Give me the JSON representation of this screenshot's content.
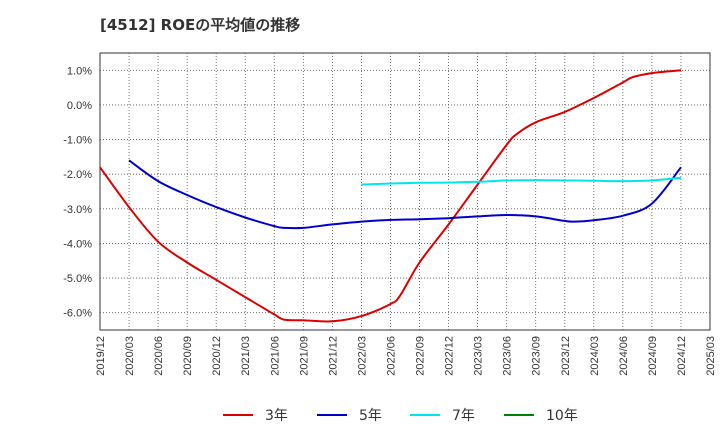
{
  "title": "[4512]  ROEの平均値の推移",
  "chart_data": {
    "type": "line",
    "title": "[4512]  ROEの平均値の推移",
    "xlabel": "",
    "ylabel": "",
    "ylim": [
      -6.5,
      1.5
    ],
    "yticks": [
      1.0,
      0.0,
      -1.0,
      -2.0,
      -3.0,
      -4.0,
      -5.0,
      -6.0
    ],
    "ytick_labels": [
      "1.0%",
      "0.0%",
      "-1.0%",
      "-2.0%",
      "-3.0%",
      "-4.0%",
      "-5.0%",
      "-6.0%"
    ],
    "xlim": [
      "2019/12",
      "2025/03"
    ],
    "categories": [
      "2019/12",
      "2020/03",
      "2020/06",
      "2020/09",
      "2020/12",
      "2021/03",
      "2021/06",
      "2021/09",
      "2021/12",
      "2022/03",
      "2022/06",
      "2022/09",
      "2022/12",
      "2023/03",
      "2023/06",
      "2023/09",
      "2023/12",
      "2024/03",
      "2024/06",
      "2024/09",
      "2024/12",
      "2025/03"
    ],
    "series": [
      {
        "name": "3年",
        "color": "#dd0000",
        "x": [
          "2019/12",
          "2020/03",
          "2020/06",
          "2020/09",
          "2020/12",
          "2021/03",
          "2021/06",
          "2021/07",
          "2021/09",
          "2021/12",
          "2022/03",
          "2022/06",
          "2022/07",
          "2022/09",
          "2022/12",
          "2023/03",
          "2023/06",
          "2023/07",
          "2023/09",
          "2023/12",
          "2024/03",
          "2024/06",
          "2024/07",
          "2024/09",
          "2024/12"
        ],
        "values": [
          -1.8,
          -2.95,
          -3.95,
          -4.55,
          -5.05,
          -5.55,
          -6.05,
          -6.2,
          -6.22,
          -6.25,
          -6.1,
          -5.75,
          -5.5,
          -4.55,
          -3.45,
          -2.3,
          -1.15,
          -0.85,
          -0.5,
          -0.2,
          0.2,
          0.65,
          0.8,
          0.92,
          1.0
        ]
      },
      {
        "name": "5年",
        "color": "#0000cc",
        "x": [
          "2020/03",
          "2020/06",
          "2020/09",
          "2020/12",
          "2021/03",
          "2021/06",
          "2021/07",
          "2021/09",
          "2021/12",
          "2022/03",
          "2022/06",
          "2022/09",
          "2022/12",
          "2023/03",
          "2023/06",
          "2023/09",
          "2023/12",
          "2024/01",
          "2024/03",
          "2024/06",
          "2024/09",
          "2024/12"
        ],
        "values": [
          -1.6,
          -2.2,
          -2.6,
          -2.95,
          -3.25,
          -3.5,
          -3.55,
          -3.55,
          -3.45,
          -3.37,
          -3.32,
          -3.3,
          -3.27,
          -3.22,
          -3.18,
          -3.22,
          -3.35,
          -3.37,
          -3.33,
          -3.2,
          -2.85,
          -1.8
        ]
      },
      {
        "name": "7年",
        "color": "#00e5ee",
        "x": [
          "2022/03",
          "2022/06",
          "2022/09",
          "2022/12",
          "2023/03",
          "2023/06",
          "2023/09",
          "2023/12",
          "2024/03",
          "2024/06",
          "2024/09",
          "2024/12"
        ],
        "values": [
          -2.3,
          -2.27,
          -2.25,
          -2.24,
          -2.22,
          -2.18,
          -2.17,
          -2.18,
          -2.19,
          -2.2,
          -2.18,
          -2.1
        ]
      },
      {
        "name": "10年",
        "color": "#008000",
        "x": [],
        "values": []
      }
    ],
    "grid": true,
    "legend": "bottom-center"
  }
}
